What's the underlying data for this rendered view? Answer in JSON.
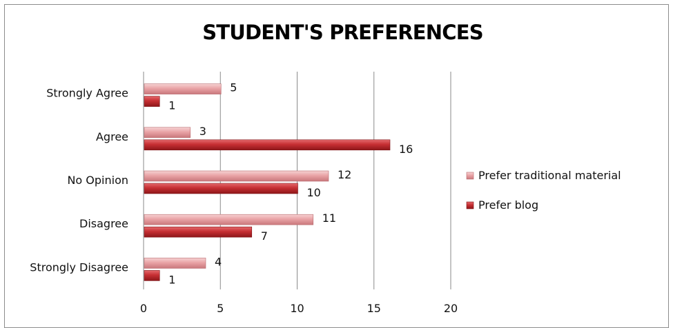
{
  "chart_data": {
    "type": "bar",
    "orientation": "horizontal",
    "title": "STUDENT'S PREFERENCES",
    "categories": [
      "Strongly Agree",
      "Agree",
      "No Opinion",
      "Disagree",
      "Strongly Disagree"
    ],
    "series": [
      {
        "name": "Prefer traditional material",
        "values": [
          5,
          3,
          12,
          11,
          4
        ],
        "color": "#e8a0a3"
      },
      {
        "name": "Prefer blog",
        "values": [
          1,
          16,
          10,
          7,
          1
        ],
        "color": "#c0292e"
      }
    ],
    "xlim": [
      0,
      20
    ],
    "xticks": [
      0,
      5,
      10,
      15,
      20
    ],
    "grid": true,
    "legend": "right",
    "data_labels": true
  }
}
